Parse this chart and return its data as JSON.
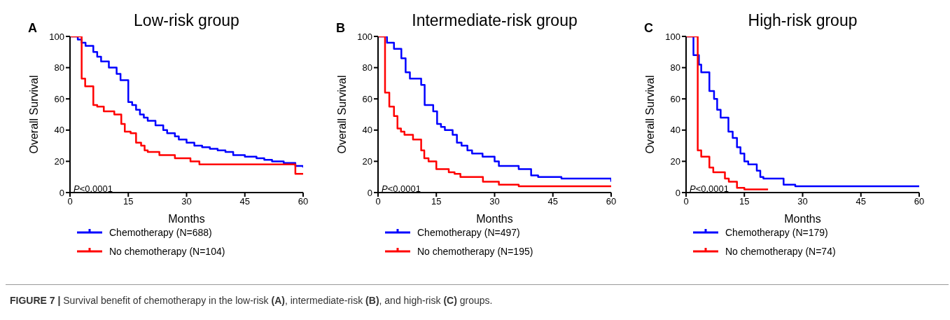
{
  "chart_data": [
    {
      "type": "step",
      "title": "Low-risk group",
      "xlabel": "Months",
      "ylabel": "Overall Survival",
      "xlim": [
        0,
        60
      ],
      "xticks": [
        0,
        15,
        30,
        45,
        60
      ],
      "ylim": [
        0,
        100
      ],
      "yticks": [
        0,
        20,
        40,
        60,
        80,
        100
      ],
      "grid": false,
      "legend": "bottom",
      "annotations": [
        "A",
        "P<0.0001",
        "FIGURE 7 | Survival benefit of chemotherapy in the low-risk (A), intermediate-risk (B), and high-risk (C) groups."
      ],
      "series": [
        {
          "name": "Chemotherapy (N=688)",
          "color": "#0000ff",
          "x": [
            0,
            2,
            3,
            4,
            6,
            7,
            8,
            10,
            12,
            13,
            15,
            16,
            17,
            18,
            19,
            20,
            22,
            24,
            25,
            27,
            28,
            30,
            32,
            34,
            36,
            38,
            40,
            42,
            45,
            48,
            50,
            52,
            55,
            58,
            60
          ],
          "values": [
            100,
            98,
            96,
            94,
            90,
            87,
            84,
            80,
            76,
            72,
            58,
            56,
            53,
            50,
            48,
            46,
            43,
            40,
            38,
            36,
            34,
            32,
            30,
            29,
            28,
            27,
            26,
            24,
            23,
            22,
            21,
            20,
            19,
            17,
            16
          ]
        },
        {
          "name": "No chemotherapy (N=104)",
          "color": "#ff0000",
          "x": [
            0,
            3,
            3.9,
            6,
            7,
            8.7,
            11.4,
            13.2,
            14.1,
            15.6,
            17,
            18.3,
            19.2,
            20,
            23,
            27,
            31,
            33.3,
            58,
            60
          ],
          "values": [
            100,
            73,
            68,
            56,
            55,
            52,
            50,
            44,
            39,
            38,
            32,
            30,
            27,
            26,
            24,
            22,
            20,
            18,
            12,
            12
          ]
        }
      ]
    },
    {
      "type": "step",
      "title": "Intermediate-risk group",
      "xlabel": "Months",
      "ylabel": "Overall Survival",
      "xlim": [
        0,
        60
      ],
      "xticks": [
        0,
        15,
        30,
        45,
        60
      ],
      "ylim": [
        0,
        100
      ],
      "yticks": [
        0,
        20,
        40,
        60,
        80,
        100
      ],
      "grid": false,
      "legend": "bottom",
      "annotations": [
        "B",
        "P<0.0001"
      ],
      "series": [
        {
          "name": "Chemotherapy (N=497)",
          "color": "#0000ff",
          "x": [
            0,
            2.3,
            4.1,
            6,
            7.1,
            8.2,
            11.1,
            12,
            14.2,
            15.2,
            16.2,
            17.2,
            19.2,
            20.3,
            21.5,
            23,
            24.2,
            26.9,
            30,
            31.1,
            36.2,
            39.4,
            41.2,
            47.2,
            60
          ],
          "values": [
            100,
            96,
            92,
            86,
            77,
            73,
            69,
            56,
            52,
            44,
            42,
            40,
            37,
            32,
            30,
            27,
            25,
            23,
            20,
            17,
            15,
            11,
            10,
            9,
            7
          ]
        },
        {
          "name": "No chemotherapy (N=195)",
          "color": "#ff0000",
          "x": [
            0,
            1.8,
            2.9,
            4.1,
            5,
            5.9,
            6.8,
            9,
            11.1,
            11.9,
            13,
            15,
            18.2,
            19.7,
            21.2,
            27,
            31.1,
            36.2,
            60
          ],
          "values": [
            100,
            64,
            55,
            49,
            41,
            39,
            37,
            34,
            27,
            22,
            20,
            15,
            13,
            12,
            10,
            7,
            5,
            4,
            4
          ]
        }
      ]
    },
    {
      "type": "step",
      "title": "High-risk group",
      "xlabel": "Months",
      "ylabel": "Overall Survival",
      "xlim": [
        0,
        60
      ],
      "xticks": [
        0,
        15,
        30,
        45,
        60
      ],
      "ylim": [
        0,
        100
      ],
      "yticks": [
        0,
        20,
        40,
        60,
        80,
        100
      ],
      "grid": false,
      "legend": "bottom",
      "annotations": [
        "C",
        "P<0.0001"
      ],
      "series": [
        {
          "name": "Chemotherapy (N=179)",
          "color": "#0000ff",
          "x": [
            0,
            1.9,
            3.3,
            3.9,
            6,
            7.2,
            8,
            8.9,
            10.9,
            12,
            13.1,
            14,
            15,
            16,
            18.2,
            19.1,
            19.9,
            25.1,
            28.1,
            60
          ],
          "values": [
            100,
            88,
            82,
            77,
            65,
            60,
            53,
            48,
            39,
            35,
            29,
            25,
            20,
            18,
            14,
            10,
            9,
            5,
            4,
            4
          ]
        },
        {
          "name": "No chemotherapy (N=74)",
          "color": "#ff0000",
          "x": [
            0,
            3,
            3.9,
            6,
            7,
            10,
            11,
            13.1,
            15,
            21.1
          ],
          "values": [
            100,
            27,
            23,
            16,
            13,
            9,
            7,
            3,
            2,
            2
          ]
        }
      ]
    }
  ]
}
